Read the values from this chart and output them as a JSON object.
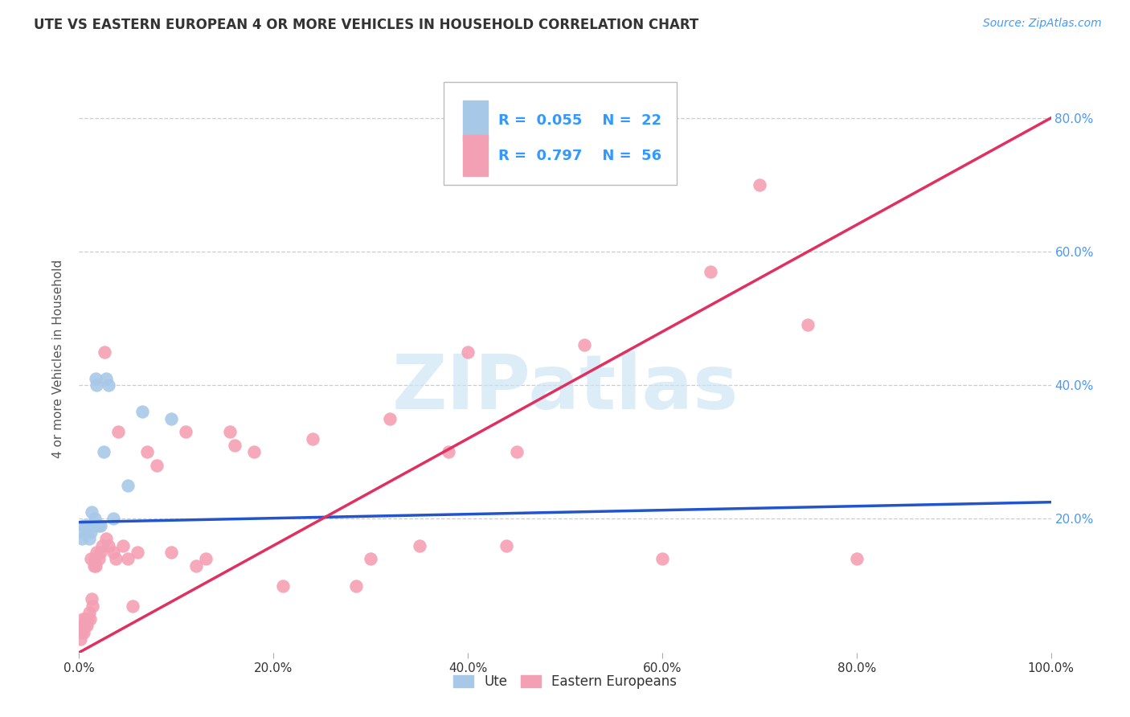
{
  "title": "UTE VS EASTERN EUROPEAN 4 OR MORE VEHICLES IN HOUSEHOLD CORRELATION CHART",
  "source": "Source: ZipAtlas.com",
  "ylabel": "4 or more Vehicles in Household",
  "watermark": "ZIPatlas",
  "xmin": 0.0,
  "xmax": 1.0,
  "ymin": 0.0,
  "ymax": 0.88,
  "xtick_vals": [
    0.0,
    0.2,
    0.4,
    0.6,
    0.8,
    1.0
  ],
  "ytick_vals": [
    0.2,
    0.4,
    0.6,
    0.8
  ],
  "ute_R": "0.055",
  "ute_N": "22",
  "ee_R": "0.797",
  "ee_N": "56",
  "ute_color": "#a8c8e8",
  "ee_color": "#f4a0b4",
  "ute_line_color": "#2255cc",
  "ee_line_color": "#e03060",
  "grid_color": "#cccccc",
  "background_color": "#ffffff",
  "title_color": "#333333",
  "source_color": "#4499ff",
  "axis_label_color": "#555555",
  "right_tick_color": "#4499ff",
  "ute_points_x": [
    0.001,
    0.003,
    0.005,
    0.007,
    0.009,
    0.01,
    0.011,
    0.012,
    0.013,
    0.015,
    0.016,
    0.017,
    0.018,
    0.02,
    0.022,
    0.025,
    0.028,
    0.03,
    0.035,
    0.05,
    0.065,
    0.095
  ],
  "ute_points_y": [
    0.18,
    0.17,
    0.19,
    0.19,
    0.18,
    0.17,
    0.19,
    0.18,
    0.21,
    0.19,
    0.2,
    0.41,
    0.4,
    0.19,
    0.19,
    0.3,
    0.41,
    0.4,
    0.2,
    0.25,
    0.36,
    0.35
  ],
  "ee_points_x": [
    0.001,
    0.002,
    0.003,
    0.004,
    0.005,
    0.006,
    0.007,
    0.008,
    0.009,
    0.01,
    0.011,
    0.012,
    0.013,
    0.014,
    0.015,
    0.016,
    0.017,
    0.018,
    0.02,
    0.022,
    0.024,
    0.026,
    0.028,
    0.03,
    0.035,
    0.038,
    0.04,
    0.045,
    0.05,
    0.055,
    0.06,
    0.07,
    0.08,
    0.095,
    0.11,
    0.13,
    0.155,
    0.18,
    0.21,
    0.24,
    0.285,
    0.32,
    0.38,
    0.44,
    0.52,
    0.6,
    0.65,
    0.7,
    0.75,
    0.8,
    0.12,
    0.16,
    0.3,
    0.35,
    0.4,
    0.45
  ],
  "ee_points_y": [
    0.02,
    0.03,
    0.04,
    0.05,
    0.03,
    0.04,
    0.05,
    0.04,
    0.05,
    0.06,
    0.05,
    0.14,
    0.08,
    0.07,
    0.13,
    0.14,
    0.13,
    0.15,
    0.14,
    0.15,
    0.16,
    0.45,
    0.17,
    0.16,
    0.15,
    0.14,
    0.33,
    0.16,
    0.14,
    0.07,
    0.15,
    0.3,
    0.28,
    0.15,
    0.33,
    0.14,
    0.33,
    0.3,
    0.1,
    0.32,
    0.1,
    0.35,
    0.3,
    0.16,
    0.46,
    0.14,
    0.57,
    0.7,
    0.49,
    0.14,
    0.13,
    0.31,
    0.14,
    0.16,
    0.45,
    0.3
  ],
  "ute_trend_x": [
    0.0,
    1.0
  ],
  "ute_trend_y": [
    0.195,
    0.225
  ],
  "ee_trend_x": [
    0.0,
    1.0
  ],
  "ee_trend_y": [
    0.0,
    0.8
  ]
}
